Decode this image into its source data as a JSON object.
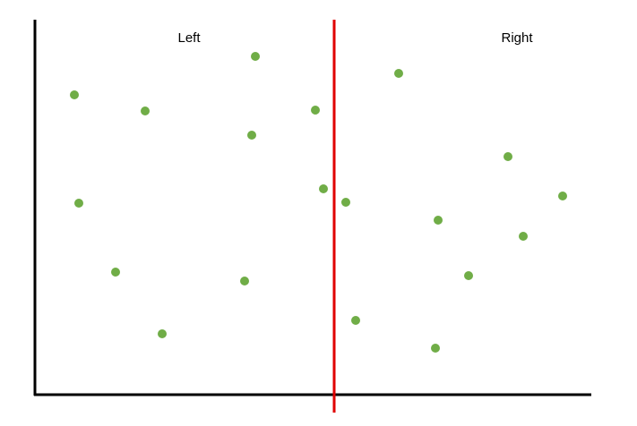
{
  "labels": {
    "left": "Left",
    "right": "Right"
  }
}
